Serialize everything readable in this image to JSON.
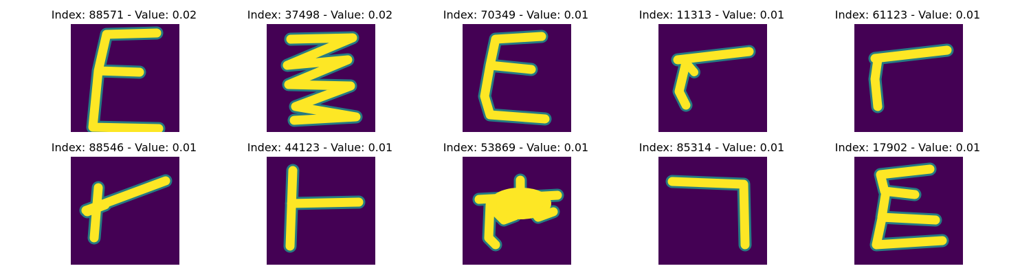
{
  "colors": {
    "background": "#440154",
    "glow": "#21918c",
    "stroke": "#fde725"
  },
  "cells": [
    {
      "title": "Index: 88571 - Value: 0.02",
      "glyph": "zigzag-e"
    },
    {
      "title": "Index: 37498 - Value: 0.02",
      "glyph": "zigzag-double"
    },
    {
      "title": "Index: 70349 - Value: 0.01",
      "glyph": "zigzag-e"
    },
    {
      "title": "Index: 11313 - Value: 0.01",
      "glyph": "bent-stroke"
    },
    {
      "title": "Index: 61123 - Value: 0.01",
      "glyph": "corner-stroke"
    },
    {
      "title": "Index: 88546 - Value: 0.01",
      "glyph": "slanted-y"
    },
    {
      "title": "Index: 44123 - Value: 0.01",
      "glyph": "t-shape"
    },
    {
      "title": "Index: 53869 - Value: 0.01",
      "glyph": "blob"
    },
    {
      "title": "Index: 85314 - Value: 0.01",
      "glyph": "reverse-l"
    },
    {
      "title": "Index: 17902 - Value: 0.01",
      "glyph": "zigzag-e"
    }
  ]
}
